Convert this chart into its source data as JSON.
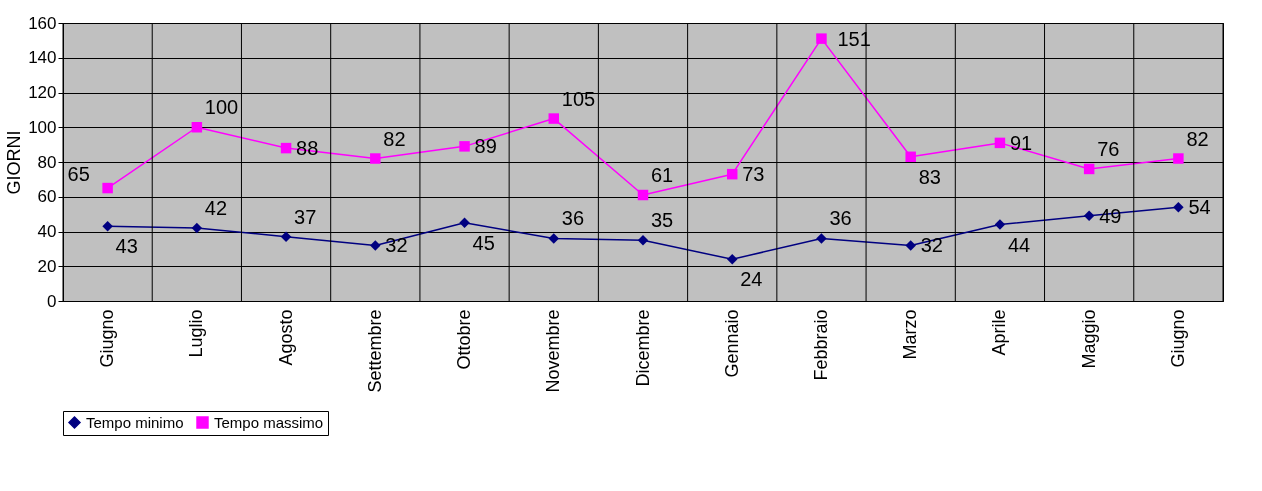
{
  "chart_data": {
    "type": "line",
    "ylabel": "GIORNI",
    "categories": [
      "Giugno",
      "Luglio",
      "Agosto",
      "Settembre",
      "Ottobre",
      "Novembre",
      "Dicembre",
      "Gennaio",
      "Febbraio",
      "Marzo",
      "Aprile",
      "Maggio",
      "Giugno"
    ],
    "series": [
      {
        "name": "Tempo minimo",
        "color": "#000080",
        "marker": "diamond",
        "values": [
          43,
          42,
          37,
          32,
          45,
          36,
          35,
          24,
          36,
          32,
          44,
          49,
          54
        ]
      },
      {
        "name": "Tempo massimo",
        "color": "#ff00ff",
        "marker": "square",
        "values": [
          65,
          100,
          88,
          82,
          89,
          105,
          61,
          73,
          151,
          83,
          91,
          76,
          82
        ]
      }
    ],
    "ylim": [
      0,
      160
    ],
    "yticks": [
      0,
      20,
      40,
      60,
      80,
      100,
      120,
      140,
      160
    ],
    "grid": true,
    "legend": "bottom",
    "data_labels": true
  }
}
